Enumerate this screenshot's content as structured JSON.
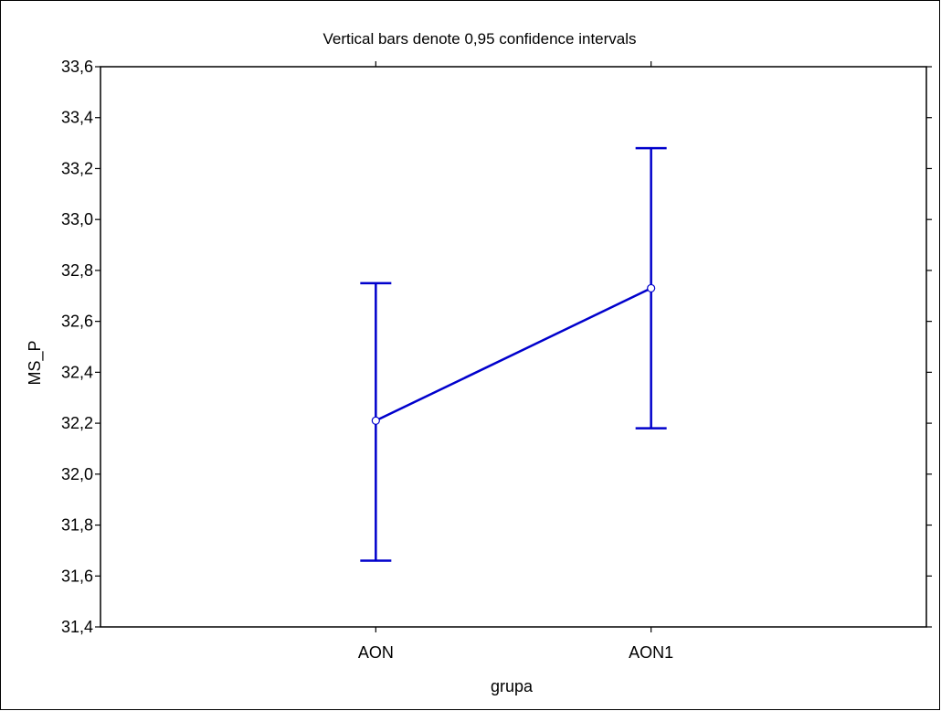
{
  "chart_data": {
    "type": "line",
    "title": "Vertical bars denote 0,95 confidence intervals",
    "xlabel": "grupa",
    "ylabel": "MS_P",
    "categories": [
      "AON",
      "AON1"
    ],
    "series": [
      {
        "values": [
          32.21,
          32.73
        ],
        "ci_lower": [
          31.66,
          32.18
        ],
        "ci_upper": [
          32.75,
          33.28
        ]
      }
    ],
    "ylim": [
      31.4,
      33.6
    ],
    "yticks": [
      "31,4",
      "31,6",
      "31,8",
      "32,0",
      "32,2",
      "32,4",
      "32,6",
      "32,8",
      "33,0",
      "33,2",
      "33,4",
      "33,6"
    ],
    "grid": true,
    "legend": "none",
    "color": "#0000cc"
  }
}
